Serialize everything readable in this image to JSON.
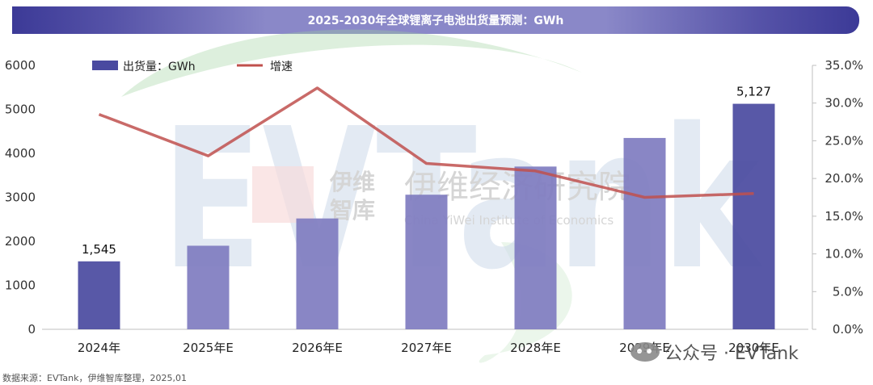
{
  "chart_data": {
    "type": "bar",
    "title": "2025-2030年全球锂离子电池出货量预测：GWh",
    "categories": [
      "2024年",
      "2025年E",
      "2026年E",
      "2027年E",
      "2028年E",
      "2029年E",
      "2030年E"
    ],
    "series": [
      {
        "name": "出货量：GWh",
        "type": "bar",
        "axis": "left",
        "values": [
          1545,
          1900,
          2520,
          3060,
          3700,
          4350,
          5127
        ]
      },
      {
        "name": "增速",
        "type": "line",
        "axis": "right",
        "values": [
          28.5,
          23.0,
          32.0,
          22.0,
          21.0,
          17.5,
          18.0
        ]
      }
    ],
    "data_labels": [
      {
        "index": 0,
        "text": "1,545"
      },
      {
        "index": 6,
        "text": "5,127"
      }
    ],
    "yleft": {
      "min": 0,
      "max": 6000,
      "ticks": [
        "0",
        "1000",
        "2000",
        "3000",
        "4000",
        "5000",
        "6000"
      ]
    },
    "yright": {
      "min": 0,
      "max": 35,
      "ticks": [
        "0.0%",
        "5.0%",
        "10.0%",
        "15.0%",
        "20.0%",
        "25.0%",
        "30.0%",
        "35.0%"
      ]
    },
    "legend_position": "top-left",
    "colors": {
      "bar_first": "#4a4aa0",
      "bar_mid": "#7f7cc0",
      "bar_last": "#4a4aa0",
      "line": "#c0504d"
    }
  },
  "watermark": {
    "org_cn": "伊维经济研究院",
    "org_cn_short_1": "伊维",
    "org_cn_short_2": "智库",
    "org_en": "China YiWei Institute of Economics",
    "brand": "EVTank"
  },
  "footer": {
    "source": "数据来源：EVTank，伊维智库整理，2025,01",
    "wechat_text": "公众号 · EVTank"
  }
}
